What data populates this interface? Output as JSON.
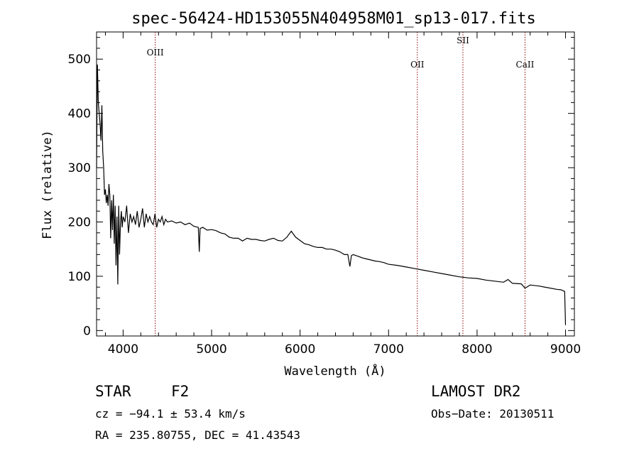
{
  "chart_data": {
    "type": "line",
    "title": "spec-56424-HD153055N404958M01_sp13-017.fits",
    "xlabel": "Wavelength (Å)",
    "ylabel": "Flux (relative)",
    "xlim": [
      3700,
      9100
    ],
    "ylim": [
      -10,
      550
    ],
    "xticks": [
      4000,
      5000,
      6000,
      7000,
      8000,
      9000
    ],
    "yticks": [
      0,
      100,
      200,
      300,
      400,
      500
    ],
    "grid": false,
    "series": [
      {
        "x": [
          3700,
          3710,
          3720,
          3730,
          3740,
          3750,
          3760,
          3770,
          3780,
          3790,
          3800,
          3810,
          3820,
          3830,
          3840,
          3850,
          3860,
          3870,
          3880,
          3890,
          3900,
          3910,
          3920,
          3930,
          3940,
          3950,
          3960,
          3970,
          3980,
          3990,
          4000,
          4020,
          4040,
          4060,
          4080,
          4100,
          4120,
          4140,
          4160,
          4180,
          4200,
          4220,
          4240,
          4260,
          4280,
          4300,
          4320,
          4340,
          4360,
          4380,
          4400,
          4420,
          4440,
          4460,
          4480,
          4500,
          4550,
          4600,
          4650,
          4700,
          4750,
          4800,
          4850,
          4861,
          4870,
          4900,
          4950,
          5000,
          5050,
          5100,
          5150,
          5200,
          5250,
          5300,
          5350,
          5400,
          5450,
          5500,
          5550,
          5600,
          5650,
          5700,
          5750,
          5800,
          5850,
          5900,
          5950,
          6000,
          6050,
          6100,
          6150,
          6200,
          6250,
          6300,
          6350,
          6400,
          6450,
          6500,
          6540,
          6563,
          6580,
          6600,
          6650,
          6700,
          6750,
          6800,
          6850,
          6900,
          6950,
          7000,
          7100,
          7200,
          7300,
          7400,
          7500,
          7600,
          7700,
          7800,
          7900,
          8000,
          8100,
          8200,
          8300,
          8350,
          8400,
          8500,
          8542,
          8600,
          8700,
          8800,
          8900,
          8950,
          8990,
          9000
        ],
        "values": [
          300,
          490,
          420,
          400,
          380,
          350,
          415,
          330,
          300,
          250,
          260,
          235,
          250,
          230,
          270,
          250,
          170,
          240,
          185,
          250,
          160,
          230,
          120,
          210,
          85,
          230,
          140,
          200,
          220,
          190,
          210,
          200,
          230,
          180,
          215,
          200,
          210,
          195,
          220,
          190,
          205,
          225,
          190,
          215,
          200,
          210,
          200,
          195,
          215,
          190,
          205,
          200,
          210,
          195,
          205,
          200,
          202,
          198,
          200,
          195,
          198,
          192,
          190,
          145,
          188,
          190,
          185,
          186,
          184,
          180,
          178,
          172,
          170,
          170,
          165,
          170,
          168,
          168,
          166,
          165,
          168,
          170,
          166,
          165,
          172,
          183,
          172,
          166,
          160,
          158,
          155,
          153,
          153,
          150,
          150,
          148,
          145,
          140,
          140,
          118,
          138,
          140,
          137,
          134,
          132,
          130,
          128,
          127,
          125,
          122,
          120,
          117,
          114,
          111,
          108,
          105,
          102,
          99,
          97,
          96,
          93,
          91,
          89,
          94,
          87,
          86,
          78,
          84,
          82,
          79,
          76,
          75,
          72,
          10
        ]
      }
    ],
    "lines": [
      {
        "x": 4363,
        "label": "OIII"
      },
      {
        "x": 7325,
        "label": "OII"
      },
      {
        "x": 7840,
        "label": "SII"
      },
      {
        "x": 8542,
        "label": "CaII"
      }
    ]
  },
  "footer": {
    "class_label": "STAR",
    "subclass": "F2",
    "survey": "LAMOST DR2",
    "cz": "cz = −94.1 ± 53.4 km/s",
    "obs_date": "Obs−Date: 20130511",
    "coords": "RA = 235.80755, DEC =  41.43543"
  },
  "colors": {
    "spectrum": "#000000",
    "line_marker": "#8b0000"
  }
}
